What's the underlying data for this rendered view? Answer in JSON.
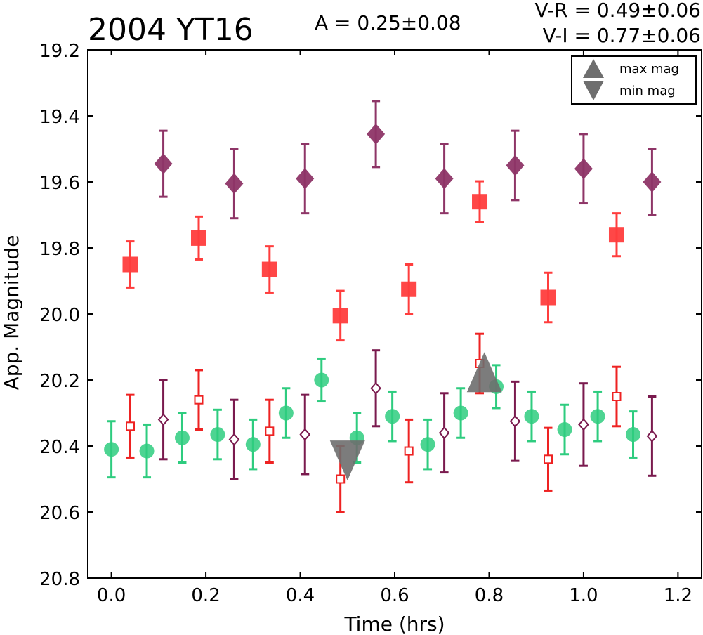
{
  "chart_data": {
    "type": "scatter",
    "title": "2004 YT16",
    "annotations": {
      "amplitude": "A  = 0.25±0.08",
      "v_r": "V-R = 0.49±0.06",
      "v_i": "V-I  = 0.77±0.06"
    },
    "xlabel": "Time (hrs)",
    "ylabel": "App. Magnitude",
    "xlim": [
      -0.05,
      1.25
    ],
    "ylim": [
      20.8,
      19.2
    ],
    "y_inverted": true,
    "xticks": [
      "0.0",
      "0.2",
      "0.4",
      "0.6",
      "0.8",
      "1.0",
      "1.2"
    ],
    "yticks": [
      "19.2",
      "19.4",
      "19.6",
      "19.8",
      "20.0",
      "20.2",
      "20.4",
      "20.6",
      "20.8"
    ],
    "grid": false,
    "legend": {
      "placement": "top-right",
      "entries": [
        {
          "label": "max mag",
          "marker": "triangle-up",
          "color": "#6e6e6e"
        },
        {
          "label": "min mag",
          "marker": "triangle-down",
          "color": "#6e6e6e"
        }
      ]
    },
    "series": [
      {
        "marker": "circle",
        "color": "#2ecc7f",
        "points": [
          {
            "x": 0.0,
            "y": 20.41,
            "err": 0.085
          },
          {
            "x": 0.075,
            "y": 20.415,
            "err": 0.08
          },
          {
            "x": 0.15,
            "y": 20.375,
            "err": 0.075
          },
          {
            "x": 0.225,
            "y": 20.365,
            "err": 0.075
          },
          {
            "x": 0.3,
            "y": 20.395,
            "err": 0.075
          },
          {
            "x": 0.37,
            "y": 20.3,
            "err": 0.075
          },
          {
            "x": 0.445,
            "y": 20.2,
            "err": 0.065
          },
          {
            "x": 0.52,
            "y": 20.375,
            "err": 0.075
          },
          {
            "x": 0.595,
            "y": 20.31,
            "err": 0.075
          },
          {
            "x": 0.67,
            "y": 20.395,
            "err": 0.075
          },
          {
            "x": 0.74,
            "y": 20.3,
            "err": 0.075
          },
          {
            "x": 0.815,
            "y": 20.22,
            "err": 0.065
          },
          {
            "x": 0.89,
            "y": 20.31,
            "err": 0.075
          },
          {
            "x": 0.96,
            "y": 20.35,
            "err": 0.075
          },
          {
            "x": 1.03,
            "y": 20.31,
            "err": 0.075
          },
          {
            "x": 1.105,
            "y": 20.365,
            "err": 0.07
          }
        ]
      },
      {
        "marker": "square-open",
        "color": "#ee2222",
        "points": [
          {
            "x": 0.04,
            "y": 20.34,
            "err": 0.095
          },
          {
            "x": 0.185,
            "y": 20.26,
            "err": 0.09
          },
          {
            "x": 0.335,
            "y": 20.355,
            "err": 0.095
          },
          {
            "x": 0.485,
            "y": 20.5,
            "err": 0.1
          },
          {
            "x": 0.63,
            "y": 20.415,
            "err": 0.095
          },
          {
            "x": 0.78,
            "y": 20.15,
            "err": 0.09
          },
          {
            "x": 0.925,
            "y": 20.44,
            "err": 0.095
          },
          {
            "x": 1.07,
            "y": 20.25,
            "err": 0.09
          }
        ]
      },
      {
        "marker": "diamond-open",
        "color": "#7a1a4e",
        "points": [
          {
            "x": 0.11,
            "y": 20.32,
            "err": 0.12
          },
          {
            "x": 0.26,
            "y": 20.38,
            "err": 0.12
          },
          {
            "x": 0.41,
            "y": 20.365,
            "err": 0.12
          },
          {
            "x": 0.56,
            "y": 20.225,
            "err": 0.115
          },
          {
            "x": 0.705,
            "y": 20.36,
            "err": 0.12
          },
          {
            "x": 0.855,
            "y": 20.325,
            "err": 0.12
          },
          {
            "x": 1.0,
            "y": 20.335,
            "err": 0.125
          },
          {
            "x": 1.145,
            "y": 20.37,
            "err": 0.12
          }
        ]
      },
      {
        "marker": "square",
        "color": "#ff3d3d",
        "points": [
          {
            "x": 0.04,
            "y": 19.85,
            "err": 0.07
          },
          {
            "x": 0.185,
            "y": 19.77,
            "err": 0.065
          },
          {
            "x": 0.335,
            "y": 19.865,
            "err": 0.07
          },
          {
            "x": 0.485,
            "y": 20.005,
            "err": 0.075
          },
          {
            "x": 0.63,
            "y": 19.925,
            "err": 0.075
          },
          {
            "x": 0.78,
            "y": 19.66,
            "err": 0.062
          },
          {
            "x": 0.925,
            "y": 19.95,
            "err": 0.075
          },
          {
            "x": 1.07,
            "y": 19.76,
            "err": 0.065
          }
        ]
      },
      {
        "marker": "diamond",
        "color": "#8e3567",
        "points": [
          {
            "x": 0.11,
            "y": 19.545,
            "err": 0.1
          },
          {
            "x": 0.26,
            "y": 19.605,
            "err": 0.105
          },
          {
            "x": 0.41,
            "y": 19.59,
            "err": 0.105
          },
          {
            "x": 0.56,
            "y": 19.455,
            "err": 0.1
          },
          {
            "x": 0.705,
            "y": 19.59,
            "err": 0.105
          },
          {
            "x": 0.855,
            "y": 19.55,
            "err": 0.105
          },
          {
            "x": 1.0,
            "y": 19.56,
            "err": 0.105
          },
          {
            "x": 1.145,
            "y": 19.6,
            "err": 0.1
          }
        ]
      }
    ],
    "extrema": [
      {
        "kind": "min",
        "marker": "triangle-down",
        "x": 0.5,
        "y": 20.43,
        "color": "#6e6e6e"
      },
      {
        "kind": "max",
        "marker": "triangle-up",
        "x": 0.79,
        "y": 20.19,
        "color": "#6e6e6e"
      }
    ]
  }
}
